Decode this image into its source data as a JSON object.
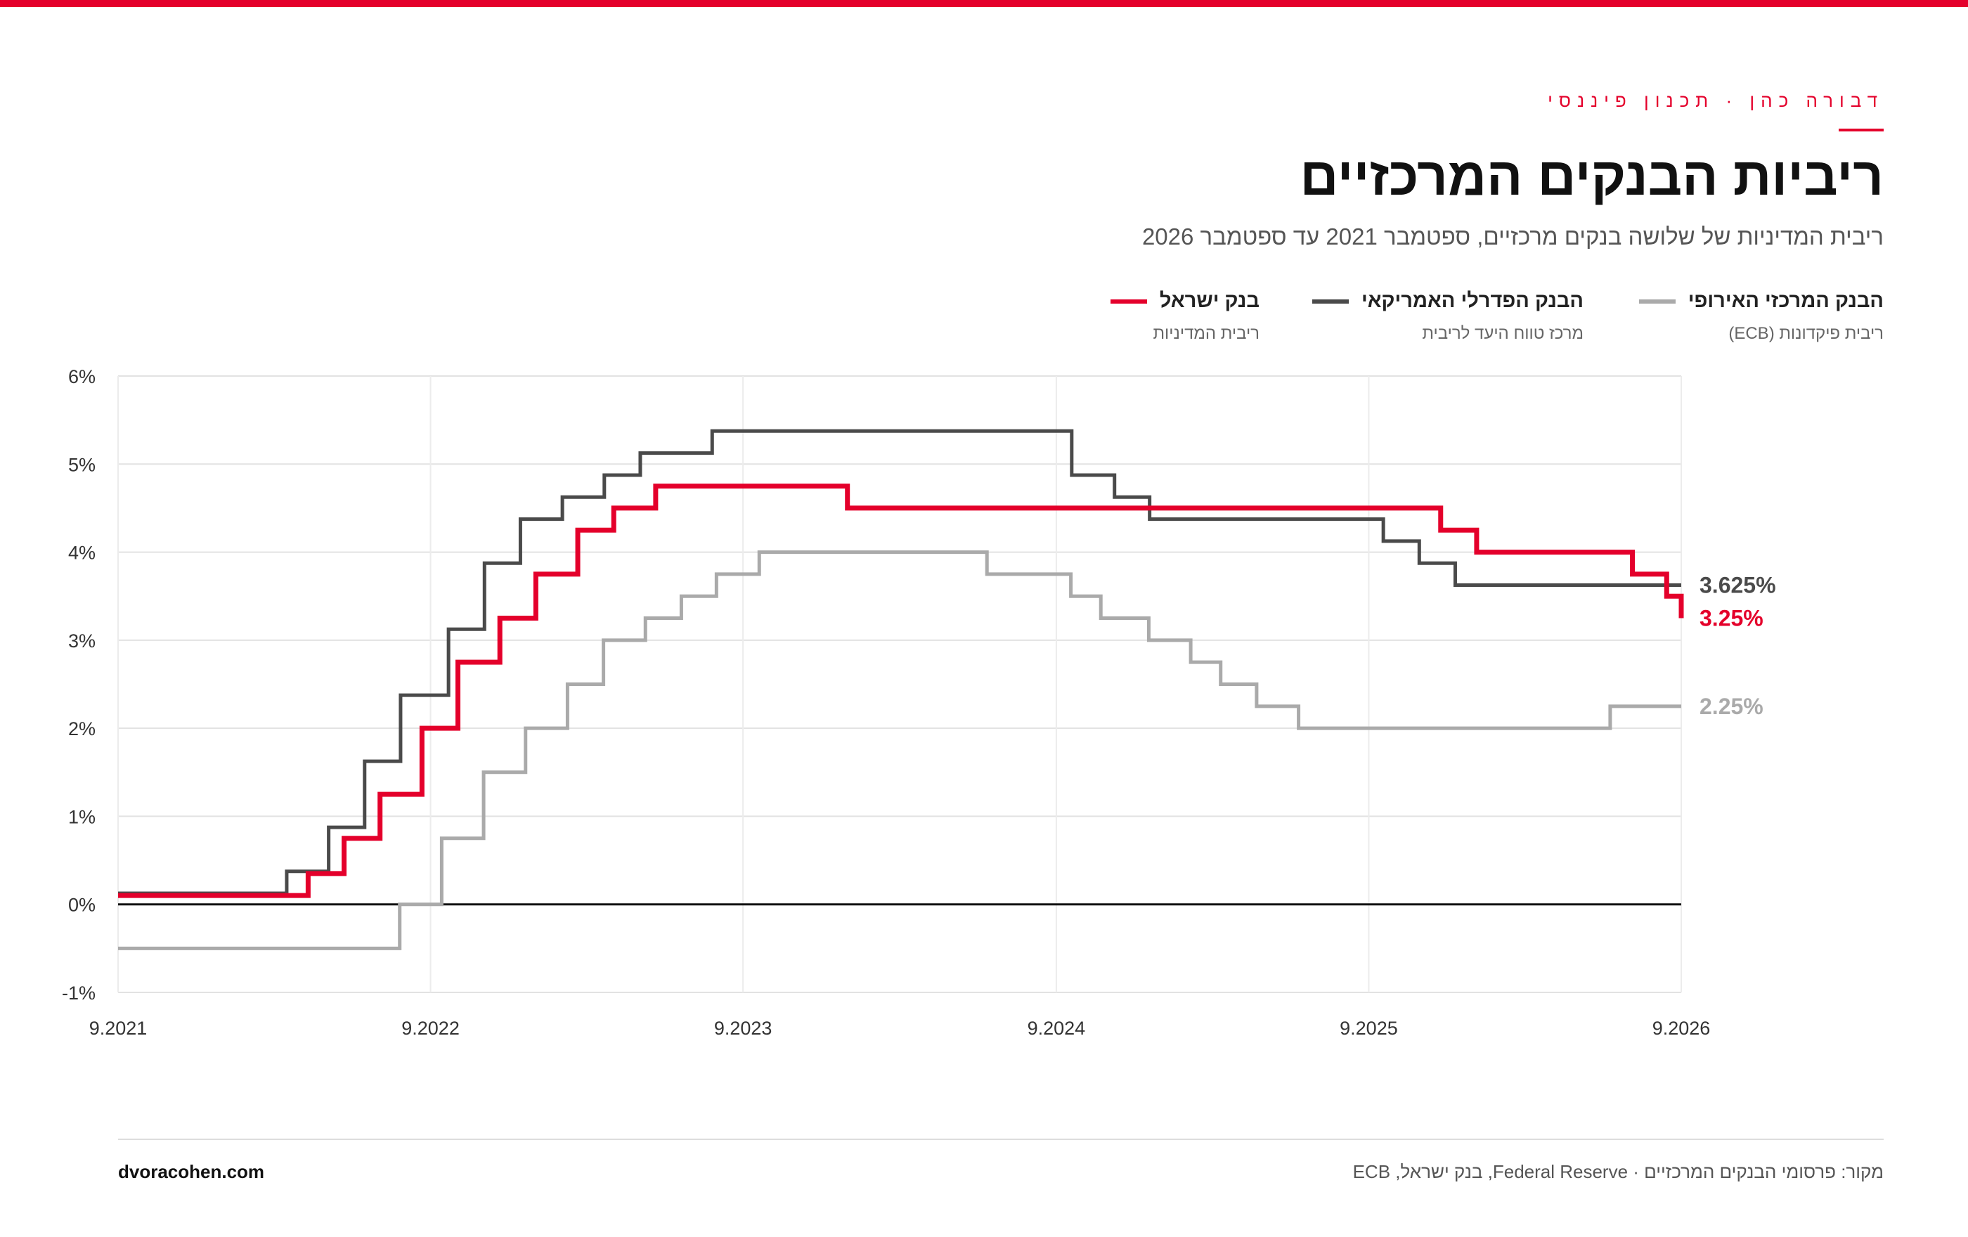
{
  "brand": "דבורה כהן · תכנון פיננסי",
  "colors": {
    "accent": "#e4002b",
    "fed": "#4a4a4a",
    "ecb": "#aaaaaa"
  },
  "footer": {
    "site": "dvoracohen.com",
    "source": "מקור: פרסומי הבנקים המרכזיים · Federal Reserve, בנק ישראל, ECB"
  },
  "chart_data": {
    "type": "line",
    "step": true,
    "title": "ריביות הבנקים המרכזיים",
    "subtitle": "ריבית המדיניות של שלושה בנקים מרכזיים, ספטמבר 2021 עד ספטמבר 2026",
    "xlabel": "",
    "ylabel": "",
    "xlim": [
      "2021-09",
      "2026-09"
    ],
    "ylim": [
      -1,
      6
    ],
    "y_ticks": [
      -1,
      0,
      1,
      2,
      3,
      4,
      5,
      6
    ],
    "y_tick_labels": [
      "-1%",
      "0%",
      "1%",
      "2%",
      "3%",
      "4%",
      "5%",
      "6%"
    ],
    "x_ticks": [
      "2021-09",
      "2022-09",
      "2023-09",
      "2024-09",
      "2025-09",
      "2026-09"
    ],
    "x_tick_labels": [
      "9.2021",
      "9.2022",
      "9.2023",
      "9.2024",
      "9.2025",
      "9.2026"
    ],
    "grid": true,
    "legend_position": "top-right",
    "series": [
      {
        "key": "ecb",
        "name": "הבנק המרכזי האירופי",
        "description": "ריבית פיקדונות (ECB)",
        "end_label": "2.25%",
        "points": [
          [
            "2021-09-01",
            -0.5
          ],
          [
            "2022-07-27",
            0
          ],
          [
            "2022-09-14",
            0.75
          ],
          [
            "2022-11-02",
            1.5
          ],
          [
            "2022-12-21",
            2.0
          ],
          [
            "2023-02-08",
            2.5
          ],
          [
            "2023-03-22",
            3.0
          ],
          [
            "2023-05-10",
            3.25
          ],
          [
            "2023-06-21",
            3.5
          ],
          [
            "2023-08-01",
            3.75
          ],
          [
            "2023-09-20",
            4.0
          ],
          [
            "2024-06-12",
            3.75
          ],
          [
            "2024-09-18",
            3.5
          ],
          [
            "2024-10-23",
            3.25
          ],
          [
            "2024-12-18",
            3.0
          ],
          [
            "2025-02-05",
            2.75
          ],
          [
            "2025-03-12",
            2.5
          ],
          [
            "2025-04-23",
            2.25
          ],
          [
            "2025-06-11",
            2.0
          ],
          [
            "2026-06-10",
            2.25
          ],
          [
            "2026-09-01",
            2.25
          ]
        ]
      },
      {
        "key": "fed",
        "name": "הבנק הפדרלי האמריקאי",
        "description": "מרכז טווח היעד לריבית",
        "end_label": "3.625%",
        "points": [
          [
            "2021-09-01",
            0.125
          ],
          [
            "2022-03-17",
            0.375
          ],
          [
            "2022-05-05",
            0.875
          ],
          [
            "2022-06-16",
            1.625
          ],
          [
            "2022-07-28",
            2.375
          ],
          [
            "2022-09-22",
            3.125
          ],
          [
            "2022-11-03",
            3.875
          ],
          [
            "2022-12-15",
            4.375
          ],
          [
            "2023-02-02",
            4.625
          ],
          [
            "2023-03-23",
            4.875
          ],
          [
            "2023-05-04",
            5.125
          ],
          [
            "2023-07-27",
            5.375
          ],
          [
            "2024-09-19",
            4.875
          ],
          [
            "2024-11-08",
            4.625
          ],
          [
            "2024-12-19",
            4.375
          ],
          [
            "2025-09-18",
            4.125
          ],
          [
            "2025-10-30",
            3.875
          ],
          [
            "2025-12-11",
            3.625
          ],
          [
            "2026-09-01",
            3.625
          ]
        ]
      },
      {
        "key": "boi",
        "name": "בנק ישראל",
        "description": "ריבית המדיניות",
        "end_label": "3.25%",
        "points": [
          [
            "2021-09-01",
            0.1
          ],
          [
            "2022-04-11",
            0.35
          ],
          [
            "2022-05-23",
            0.75
          ],
          [
            "2022-07-04",
            1.25
          ],
          [
            "2022-08-22",
            2.0
          ],
          [
            "2022-10-03",
            2.75
          ],
          [
            "2022-11-21",
            3.25
          ],
          [
            "2023-01-02",
            3.75
          ],
          [
            "2023-02-20",
            4.25
          ],
          [
            "2023-04-03",
            4.5
          ],
          [
            "2023-05-22",
            4.75
          ],
          [
            "2024-01-01",
            4.5
          ],
          [
            "2025-11-24",
            4.25
          ],
          [
            "2026-01-05",
            4.0
          ],
          [
            "2026-07-06",
            3.75
          ],
          [
            "2026-08-15",
            3.5
          ],
          [
            "2026-09-01",
            3.25
          ]
        ]
      }
    ]
  }
}
